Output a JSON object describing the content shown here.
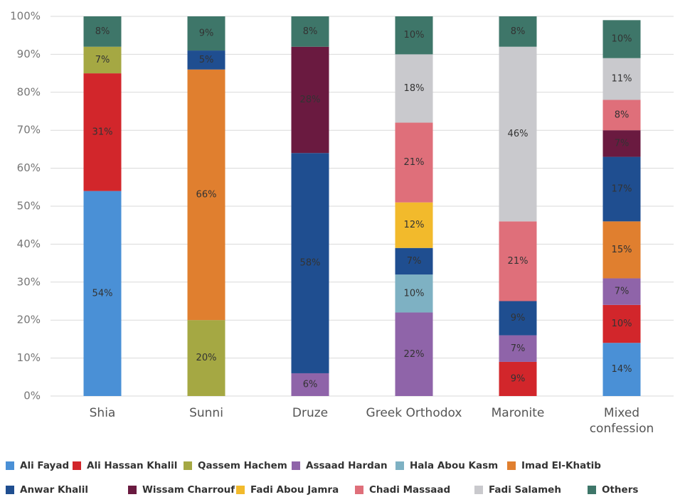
{
  "chart_data": {
    "type": "stacked_bar",
    "categories": [
      "Shia",
      "Sunni",
      "Druze",
      "Greek Orthodox",
      "Maronite",
      "Mixed confession"
    ],
    "series": [
      {
        "name": "Ali Fayad",
        "color": "#4a90d6",
        "values": [
          54,
          null,
          null,
          null,
          null,
          14
        ],
        "value_labels": [
          "54%",
          null,
          null,
          null,
          null,
          "14%"
        ]
      },
      {
        "name": "Ali Hassan Khalil",
        "color": "#d2262b",
        "values": [
          31,
          null,
          null,
          null,
          9,
          10
        ],
        "value_labels": [
          "31%",
          null,
          null,
          null,
          "9%",
          "10%"
        ]
      },
      {
        "name": "Qassem Hachem",
        "color": "#a5a843",
        "values": [
          7,
          20,
          null,
          null,
          null,
          null
        ],
        "value_labels": [
          "7%",
          "20%",
          null,
          null,
          null,
          null
        ]
      },
      {
        "name": "Assaad Hardan",
        "color": "#8f64a9",
        "values": [
          null,
          null,
          6,
          22,
          7,
          7
        ],
        "value_labels": [
          null,
          null,
          "6%",
          "22%",
          "7%",
          "7%"
        ]
      },
      {
        "name": "Hala Abou Kasm",
        "color": "#7eb1c3",
        "values": [
          null,
          null,
          null,
          10,
          null,
          null
        ],
        "value_labels": [
          null,
          null,
          null,
          "10%",
          null,
          null
        ]
      },
      {
        "name": "Imad El-Khatib",
        "color": "#e07f2f",
        "values": [
          null,
          66,
          null,
          null,
          null,
          15
        ],
        "value_labels": [
          null,
          "66%",
          null,
          null,
          null,
          "15%"
        ]
      },
      {
        "name": "Anwar Khalil",
        "color": "#1f4e90",
        "values": [
          null,
          5,
          58,
          7,
          9,
          17
        ],
        "value_labels": [
          null,
          "5%",
          "58%",
          "7%",
          "9%",
          "17%"
        ]
      },
      {
        "name": "Wissam Charrouf",
        "color": "#6a1a40",
        "values": [
          null,
          null,
          28,
          null,
          null,
          7
        ],
        "value_labels": [
          null,
          null,
          "28%",
          null,
          null,
          "7%"
        ]
      },
      {
        "name": "Fadi Abou Jamra",
        "color": "#f2ba2c",
        "values": [
          null,
          null,
          null,
          12,
          null,
          null
        ],
        "value_labels": [
          null,
          null,
          null,
          "12%",
          null,
          null
        ]
      },
      {
        "name": "Chadi Massaad",
        "color": "#df6f7a",
        "values": [
          null,
          null,
          null,
          21,
          21,
          8
        ],
        "value_labels": [
          null,
          null,
          null,
          "21%",
          "21%",
          "8%"
        ]
      },
      {
        "name": "Fadi Salameh",
        "color": "#c9c9cd",
        "values": [
          null,
          null,
          null,
          18,
          46,
          11
        ],
        "value_labels": [
          null,
          null,
          null,
          "18%",
          "46%",
          "11%"
        ]
      },
      {
        "name": "Others",
        "color": "#3e7669",
        "values": [
          8,
          9,
          8,
          10,
          8,
          10
        ],
        "value_labels": [
          "8%",
          "9%",
          "8%",
          "10%",
          "8%",
          "10%"
        ]
      }
    ],
    "ylim": [
      0,
      100
    ],
    "yticks": [
      {
        "value": 0,
        "label": "0%"
      },
      {
        "value": 10,
        "label": "10%"
      },
      {
        "value": 20,
        "label": "20%"
      },
      {
        "value": 30,
        "label": "30%"
      },
      {
        "value": 40,
        "label": "40%"
      },
      {
        "value": 50,
        "label": "50%"
      },
      {
        "value": 60,
        "label": "60%"
      },
      {
        "value": 70,
        "label": "70%"
      },
      {
        "value": 80,
        "label": "80%"
      },
      {
        "value": 90,
        "label": "90%"
      },
      {
        "value": 100,
        "label": "100%"
      }
    ],
    "grid": true,
    "legend": "bottom"
  }
}
